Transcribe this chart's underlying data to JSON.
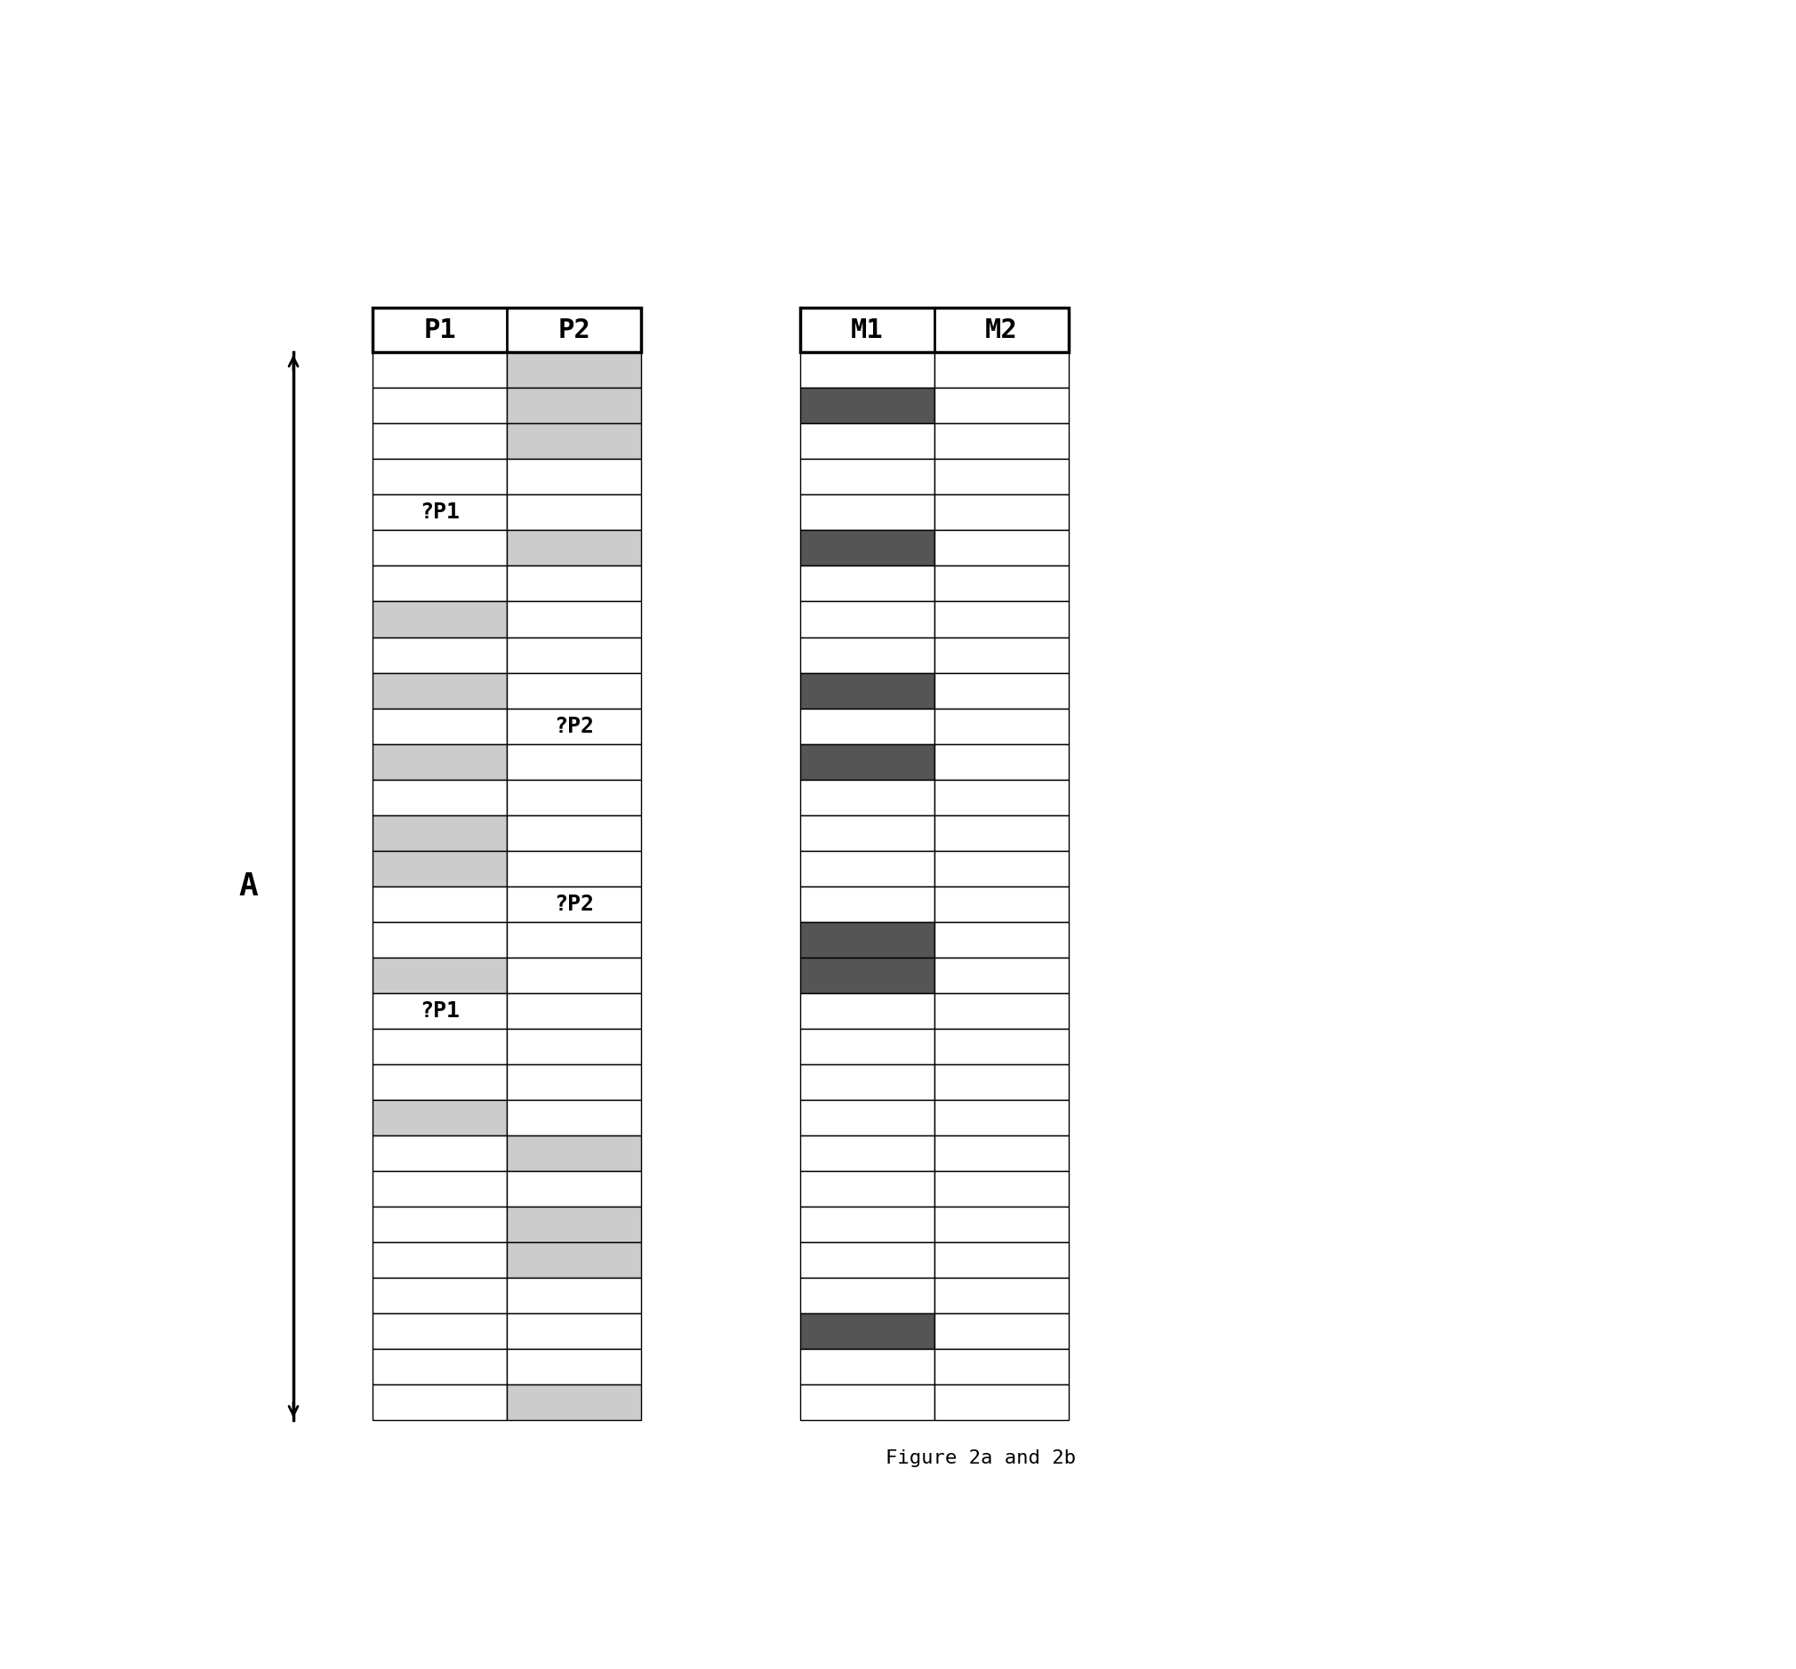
{
  "title": "Figure 2a and 2b",
  "n_rows": 30,
  "left_chart": {
    "header": [
      "P1",
      "P2"
    ],
    "p1_shaded_rows": [
      7,
      9,
      11,
      13,
      14,
      17,
      21
    ],
    "p2_shaded_rows": [
      0,
      1,
      2,
      5,
      22,
      24,
      25,
      29
    ],
    "p1_label_rows": [
      4,
      18
    ],
    "p2_label_rows": [
      10,
      15
    ],
    "p1_labels": [
      "?P1",
      "?P1"
    ],
    "p2_labels": [
      "?P2",
      "?P2"
    ],
    "light_gray": "#cccccc",
    "white": "#ffffff"
  },
  "right_chart": {
    "header": [
      "M1",
      "M2"
    ],
    "m1_dark_rows": [
      1,
      5,
      9,
      11,
      16,
      17,
      27
    ],
    "dark_gray": "#555555",
    "white": "#ffffff"
  },
  "arrow_label": "A",
  "bg_color": "#ffffff"
}
